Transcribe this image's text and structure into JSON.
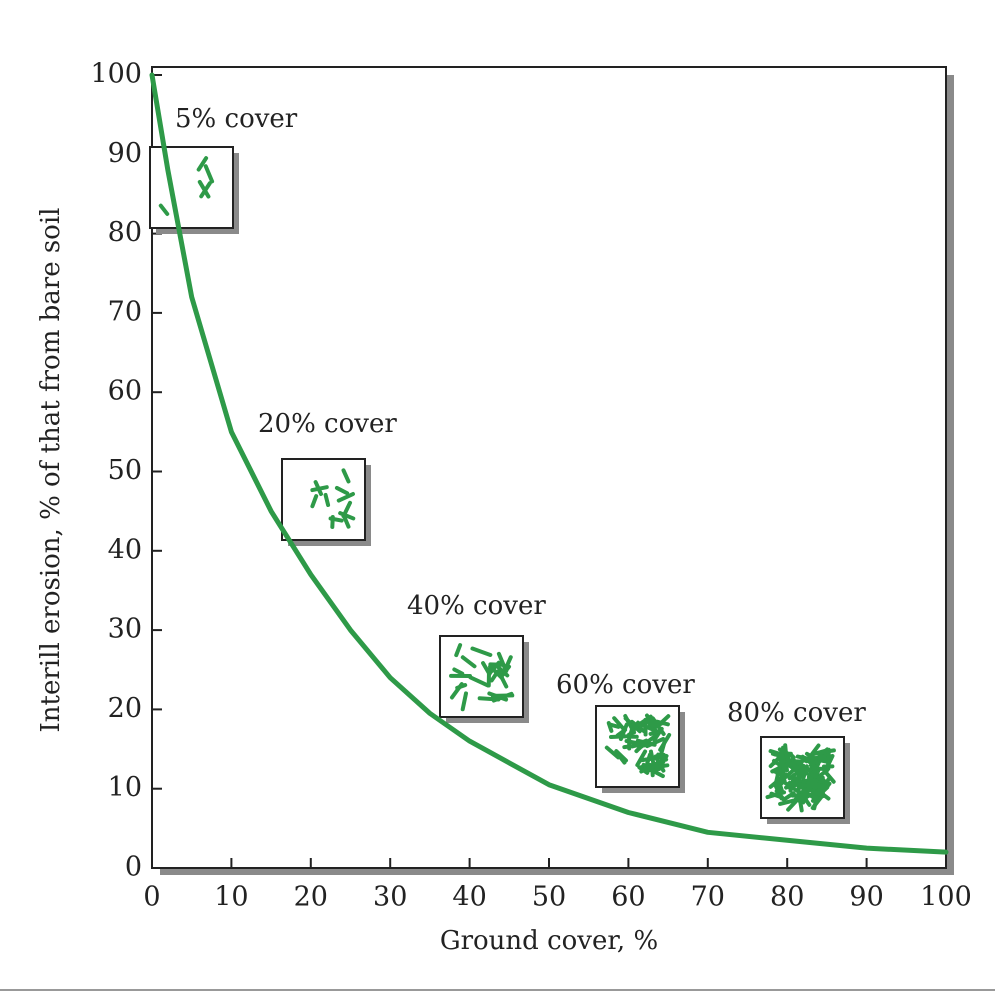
{
  "chart_data": {
    "type": "line",
    "x_label": "Ground cover, %",
    "y_label": "Interill erosion, % of that from bare soil",
    "x": [
      0,
      2,
      5,
      10,
      15,
      20,
      25,
      30,
      35,
      40,
      50,
      60,
      70,
      80,
      90,
      100
    ],
    "values": [
      100,
      88,
      72,
      55,
      45,
      37,
      30,
      24,
      19.5,
      16,
      10.5,
      7,
      4.5,
      3.5,
      2.5,
      2
    ],
    "color": "#2e9a48",
    "xlim": [
      0,
      100
    ],
    "ylim": [
      0,
      100
    ],
    "xticks": [
      0,
      10,
      20,
      30,
      40,
      50,
      60,
      70,
      80,
      90,
      100
    ],
    "yticks": [
      0,
      10,
      20,
      30,
      40,
      50,
      60,
      70,
      80,
      90,
      100
    ],
    "grid": false,
    "annotations": [
      "5% cover",
      "20% cover",
      "40% cover",
      "60% cover",
      "80% cover"
    ]
  }
}
